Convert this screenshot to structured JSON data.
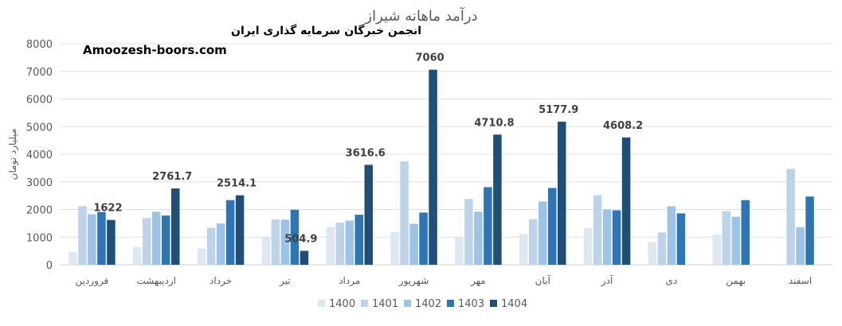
{
  "brand": {
    "line1": "انجمن خبرگان سرمایه گذاری ایران",
    "line2": "Amoozesh-boors.com"
  },
  "chart_data": {
    "type": "bar",
    "title": "درآمد ماهانه شیراز",
    "ylabel": "میلیارد تومان",
    "xlabel": "",
    "ylim": [
      0,
      8000
    ],
    "yticks": [
      0,
      1000,
      2000,
      3000,
      4000,
      5000,
      6000,
      7000,
      8000
    ],
    "grid": true,
    "legend_position": "bottom",
    "categories": [
      "فروردین",
      "اردیبهشت",
      "خرداد",
      "تیر",
      "مرداد",
      "شهریور",
      "مهر",
      "آبان",
      "آذر",
      "دی",
      "بهمن",
      "اسفند"
    ],
    "series": [
      {
        "name": "1400",
        "color": "#dde8f3",
        "values": [
          470,
          640,
          590,
          990,
          1360,
          1190,
          990,
          1110,
          1330,
          820,
          1100,
          null
        ]
      },
      {
        "name": "1401",
        "color": "#bdd3ea",
        "values": [
          2120,
          1690,
          1340,
          1640,
          1530,
          3740,
          2380,
          1650,
          2520,
          1170,
          1940,
          3470
        ]
      },
      {
        "name": "1402",
        "color": "#9dc3e6",
        "values": [
          1830,
          1920,
          1500,
          1630,
          1600,
          1480,
          1920,
          2290,
          2000,
          2120,
          1740,
          1360
        ]
      },
      {
        "name": "1403",
        "color": "#2e75b6",
        "values": [
          1910,
          1780,
          2340,
          1990,
          1810,
          1890,
          2810,
          2780,
          1970,
          1860,
          2340,
          2470
        ]
      },
      {
        "name": "1404",
        "color": "#1f4e79",
        "values": [
          1622,
          2761.7,
          2514.1,
          504.9,
          3616.6,
          7060,
          4710.8,
          5177.9,
          4608.2,
          null,
          null,
          null
        ]
      }
    ],
    "data_labels": {
      "series": "1404",
      "texts": [
        "1622",
        "2761.7",
        "2514.1",
        "504.9",
        "3616.6",
        "7060",
        "4710.8",
        "5177.9",
        "4608.2",
        "",
        "",
        ""
      ]
    }
  }
}
